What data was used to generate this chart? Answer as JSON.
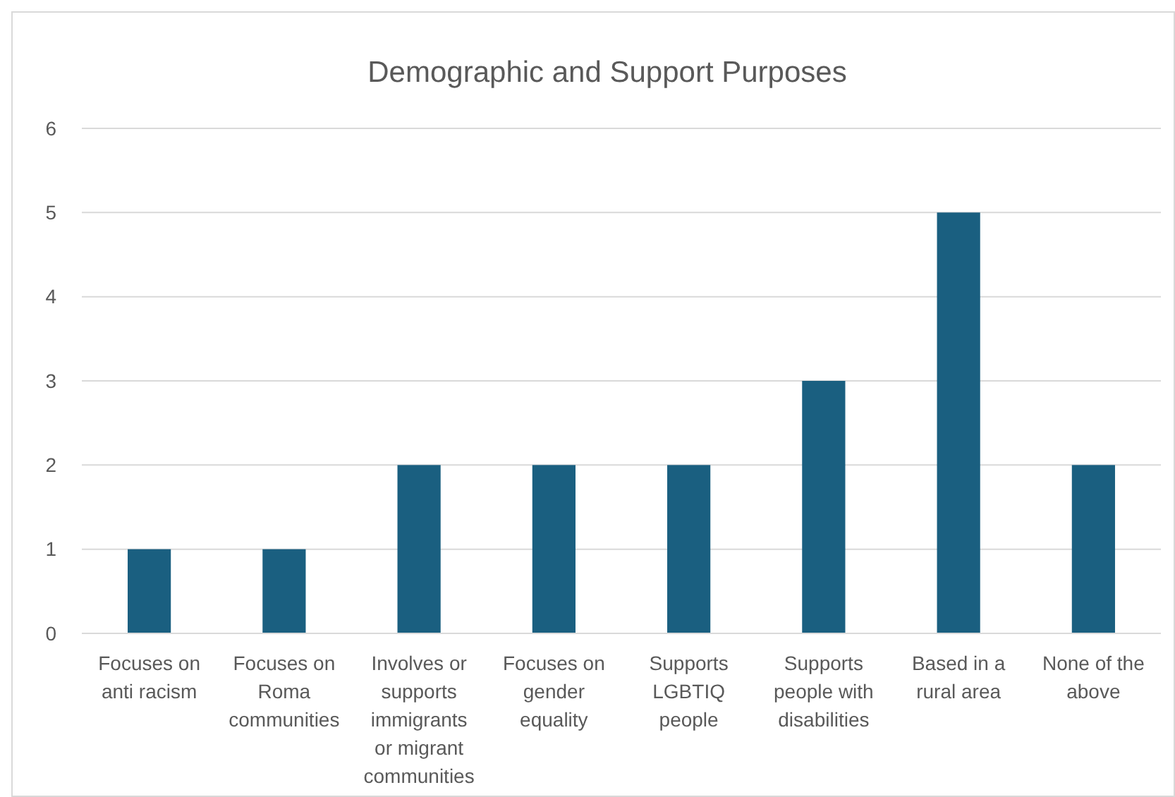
{
  "chart_data": {
    "type": "bar",
    "title": "Demographic and Support Purposes",
    "categories": [
      "Focuses on anti racism",
      "Focuses on Roma communities",
      "Involves or supports immigrants or migrant communities",
      "Focuses on gender equality",
      "Supports LGBTIQ people",
      "Supports people with disabilities",
      "Based in a rural area",
      "None of the above"
    ],
    "values": [
      1,
      1,
      2,
      2,
      2,
      3,
      5,
      2
    ],
    "color": "#1a5f80",
    "ylim": [
      0,
      6
    ],
    "yticks": [
      0,
      1,
      2,
      3,
      4,
      5,
      6
    ],
    "grid": "y"
  }
}
